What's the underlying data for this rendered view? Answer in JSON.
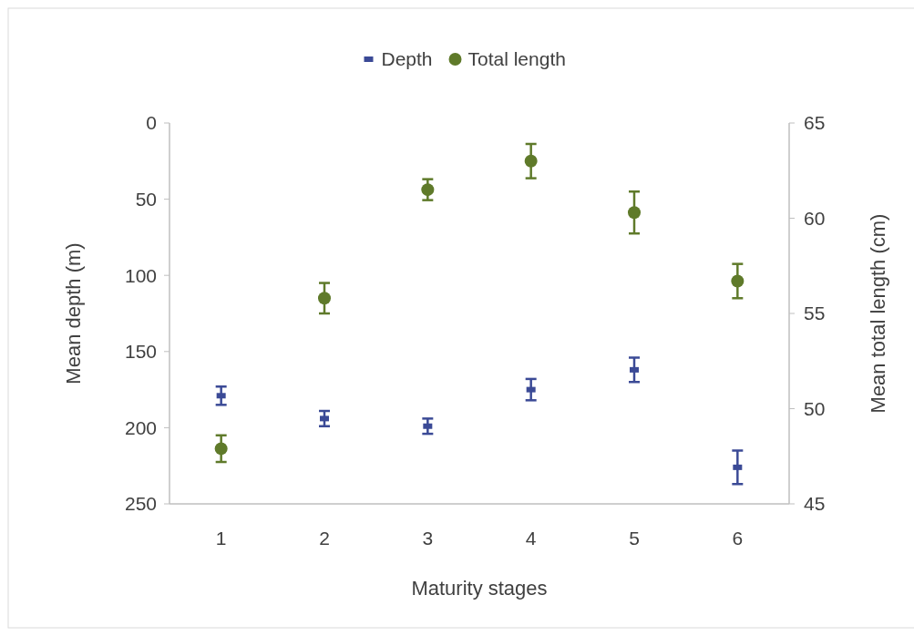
{
  "chart_data": {
    "type": "scatter",
    "xlabel": "Maturity stages",
    "ylabel": "Mean depth (m)",
    "y2label": "Mean total length (cm)",
    "categories": [
      "1",
      "2",
      "3",
      "4",
      "5",
      "6"
    ],
    "ylim": [
      250,
      0
    ],
    "yticks": [
      0,
      50,
      100,
      150,
      200,
      250
    ],
    "y2lim": [
      45,
      65
    ],
    "y2ticks": [
      45,
      50,
      55,
      60,
      65
    ],
    "legend": "top",
    "grid": false,
    "series": [
      {
        "name": "Depth",
        "color": "#3b4a96",
        "marker": "square",
        "values": [
          179,
          194,
          199,
          175,
          162,
          226
        ],
        "errors": [
          6,
          5,
          5,
          7,
          8,
          11
        ]
      },
      {
        "name": "Total length",
        "color": "#5f7a2a",
        "marker": "circle",
        "axis": "y2",
        "values": [
          47.9,
          55.8,
          61.5,
          63.0,
          60.3,
          56.7
        ],
        "errors": [
          0.7,
          0.8,
          0.55,
          0.9,
          1.1,
          0.9
        ]
      }
    ]
  }
}
